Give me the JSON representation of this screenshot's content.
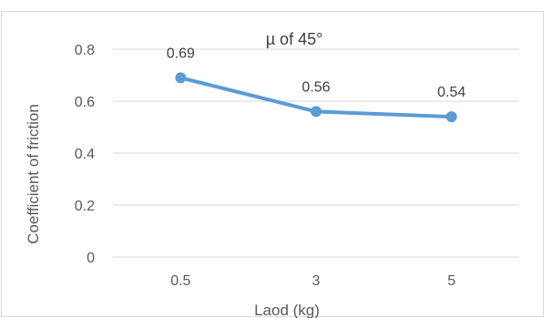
{
  "chart_data": {
    "type": "line",
    "title": "µ of 45°",
    "xlabel": "Laod (kg)",
    "ylabel": "Coefficient of friction",
    "categories": [
      "0.5",
      "3",
      "5"
    ],
    "series": [
      {
        "values": [
          0.69,
          0.56,
          0.54
        ],
        "data_labels": [
          "0.69",
          "0.56",
          "0.54"
        ],
        "color": "#5b9bd5"
      }
    ],
    "ylim": [
      0,
      0.8
    ],
    "yticks": [
      0,
      0.2,
      0.4,
      0.6,
      0.8
    ],
    "ytick_labels": [
      "0",
      "0.2",
      "0.4",
      "0.6",
      "0.8"
    ],
    "grid": true,
    "gridline_color": "#d9d9d9"
  }
}
